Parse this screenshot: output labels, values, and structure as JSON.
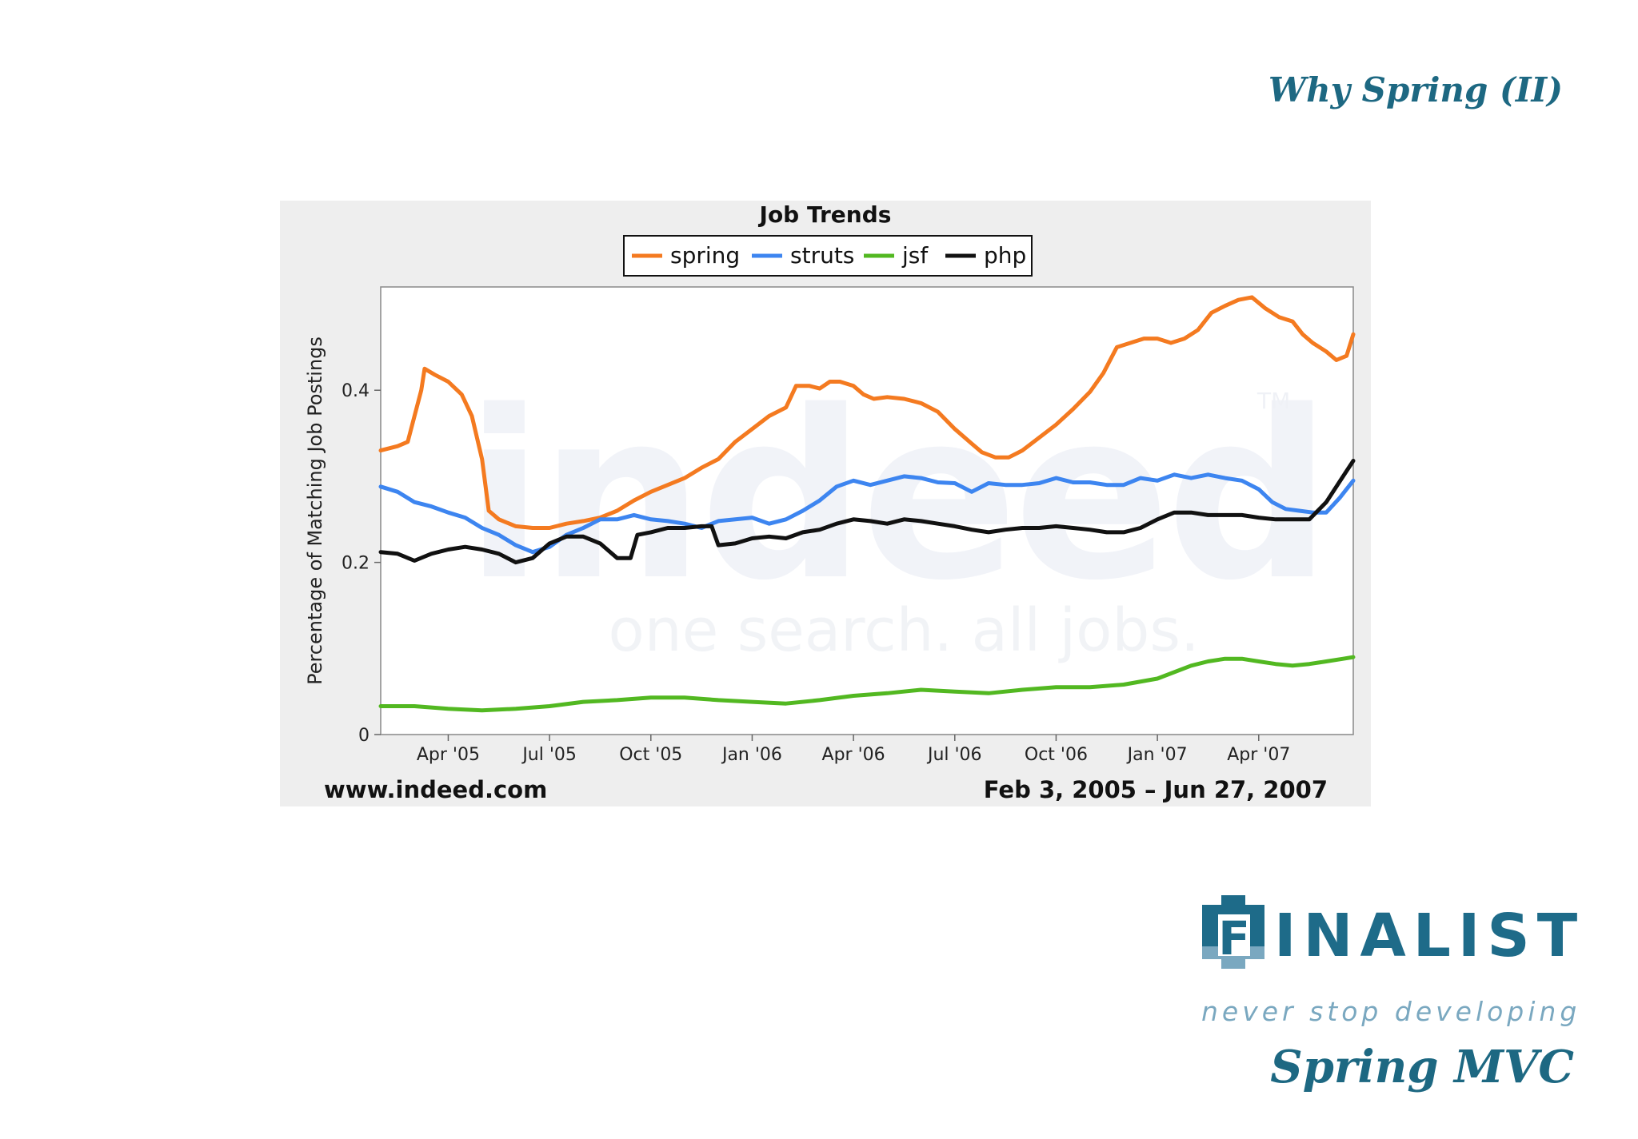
{
  "slide": {
    "title": "Why Spring (II)",
    "subtitle": "Spring MVC",
    "logo_text": "INALIST",
    "logo_initial": "F",
    "tagline": "never stop developing",
    "colors": {
      "accent": "#1d6882",
      "tagline": "#7aa8c0"
    }
  },
  "chart_data": {
    "type": "line",
    "title": "Job Trends",
    "xlabel": "",
    "ylabel": "Percentage of Matching Job Postings",
    "source": "www.indeed.com",
    "date_range": "Feb 3, 2005 – Jun 27, 2007",
    "watermark": {
      "brand": "indeed",
      "trademark": "TM",
      "slogan": "one search. all jobs."
    },
    "legend": "top-center",
    "x_range": [
      0,
      28.8
    ],
    "ylim": [
      0,
      0.52
    ],
    "x_ticks": [
      {
        "x": 2,
        "label": "Apr '05"
      },
      {
        "x": 5,
        "label": "Jul '05"
      },
      {
        "x": 8,
        "label": "Oct '05"
      },
      {
        "x": 11,
        "label": "Jan '06"
      },
      {
        "x": 14,
        "label": "Apr '06"
      },
      {
        "x": 17,
        "label": "Jul '06"
      },
      {
        "x": 20,
        "label": "Oct '06"
      },
      {
        "x": 23,
        "label": "Jan '07"
      },
      {
        "x": 26,
        "label": "Apr '07"
      }
    ],
    "y_ticks": [
      {
        "y": 0,
        "label": "0"
      },
      {
        "y": 0.2,
        "label": "0.2"
      },
      {
        "y": 0.4,
        "label": "0.4"
      }
    ],
    "series": [
      {
        "name": "spring",
        "color": "#f47a20",
        "points": [
          [
            0,
            0.33
          ],
          [
            0.5,
            0.335
          ],
          [
            0.8,
            0.34
          ],
          [
            1.2,
            0.4
          ],
          [
            1.3,
            0.425
          ],
          [
            1.6,
            0.418
          ],
          [
            2,
            0.41
          ],
          [
            2.4,
            0.395
          ],
          [
            2.7,
            0.37
          ],
          [
            3,
            0.32
          ],
          [
            3.2,
            0.26
          ],
          [
            3.5,
            0.25
          ],
          [
            4,
            0.242
          ],
          [
            4.5,
            0.24
          ],
          [
            5,
            0.24
          ],
          [
            5.5,
            0.245
          ],
          [
            6,
            0.248
          ],
          [
            6.5,
            0.252
          ],
          [
            7,
            0.26
          ],
          [
            7.5,
            0.272
          ],
          [
            8,
            0.282
          ],
          [
            8.5,
            0.29
          ],
          [
            9,
            0.298
          ],
          [
            9.5,
            0.31
          ],
          [
            10,
            0.32
          ],
          [
            10.5,
            0.34
          ],
          [
            11,
            0.355
          ],
          [
            11.5,
            0.37
          ],
          [
            12,
            0.38
          ],
          [
            12.3,
            0.405
          ],
          [
            12.7,
            0.405
          ],
          [
            13,
            0.402
          ],
          [
            13.3,
            0.41
          ],
          [
            13.6,
            0.41
          ],
          [
            14,
            0.405
          ],
          [
            14.3,
            0.395
          ],
          [
            14.6,
            0.39
          ],
          [
            15,
            0.392
          ],
          [
            15.5,
            0.39
          ],
          [
            16,
            0.385
          ],
          [
            16.5,
            0.375
          ],
          [
            17,
            0.355
          ],
          [
            17.5,
            0.338
          ],
          [
            17.8,
            0.328
          ],
          [
            18.2,
            0.322
          ],
          [
            18.6,
            0.322
          ],
          [
            19,
            0.33
          ],
          [
            19.5,
            0.345
          ],
          [
            20,
            0.36
          ],
          [
            20.5,
            0.378
          ],
          [
            21,
            0.398
          ],
          [
            21.4,
            0.42
          ],
          [
            21.8,
            0.45
          ],
          [
            22.2,
            0.455
          ],
          [
            22.6,
            0.46
          ],
          [
            23,
            0.46
          ],
          [
            23.4,
            0.455
          ],
          [
            23.8,
            0.46
          ],
          [
            24.2,
            0.47
          ],
          [
            24.6,
            0.49
          ],
          [
            25,
            0.498
          ],
          [
            25.4,
            0.505
          ],
          [
            25.8,
            0.508
          ],
          [
            26.2,
            0.495
          ],
          [
            26.6,
            0.485
          ],
          [
            27,
            0.48
          ],
          [
            27.3,
            0.465
          ],
          [
            27.6,
            0.455
          ],
          [
            28,
            0.445
          ],
          [
            28.3,
            0.435
          ],
          [
            28.6,
            0.44
          ],
          [
            28.8,
            0.465
          ]
        ]
      },
      {
        "name": "struts",
        "color": "#3d85f0",
        "points": [
          [
            0,
            0.288
          ],
          [
            0.5,
            0.282
          ],
          [
            1,
            0.27
          ],
          [
            1.5,
            0.265
          ],
          [
            2,
            0.258
          ],
          [
            2.5,
            0.252
          ],
          [
            3,
            0.24
          ],
          [
            3.5,
            0.232
          ],
          [
            4,
            0.22
          ],
          [
            4.5,
            0.212
          ],
          [
            5,
            0.218
          ],
          [
            5.5,
            0.232
          ],
          [
            6,
            0.24
          ],
          [
            6.5,
            0.25
          ],
          [
            7,
            0.25
          ],
          [
            7.5,
            0.255
          ],
          [
            8,
            0.25
          ],
          [
            8.5,
            0.248
          ],
          [
            9,
            0.245
          ],
          [
            9.5,
            0.24
          ],
          [
            10,
            0.248
          ],
          [
            10.5,
            0.25
          ],
          [
            11,
            0.252
          ],
          [
            11.5,
            0.245
          ],
          [
            12,
            0.25
          ],
          [
            12.5,
            0.26
          ],
          [
            13,
            0.272
          ],
          [
            13.5,
            0.288
          ],
          [
            14,
            0.295
          ],
          [
            14.5,
            0.29
          ],
          [
            15,
            0.295
          ],
          [
            15.5,
            0.3
          ],
          [
            16,
            0.298
          ],
          [
            16.5,
            0.293
          ],
          [
            17,
            0.292
          ],
          [
            17.5,
            0.282
          ],
          [
            18,
            0.292
          ],
          [
            18.5,
            0.29
          ],
          [
            19,
            0.29
          ],
          [
            19.5,
            0.292
          ],
          [
            20,
            0.298
          ],
          [
            20.5,
            0.293
          ],
          [
            21,
            0.293
          ],
          [
            21.5,
            0.29
          ],
          [
            22,
            0.29
          ],
          [
            22.5,
            0.298
          ],
          [
            23,
            0.295
          ],
          [
            23.5,
            0.302
          ],
          [
            24,
            0.298
          ],
          [
            24.5,
            0.302
          ],
          [
            25,
            0.298
          ],
          [
            25.5,
            0.295
          ],
          [
            26,
            0.285
          ],
          [
            26.4,
            0.27
          ],
          [
            26.8,
            0.262
          ],
          [
            27.2,
            0.26
          ],
          [
            27.6,
            0.258
          ],
          [
            28,
            0.258
          ],
          [
            28.4,
            0.275
          ],
          [
            28.8,
            0.295
          ]
        ]
      },
      {
        "name": "jsf",
        "color": "#52b821",
        "points": [
          [
            0,
            0.033
          ],
          [
            1,
            0.033
          ],
          [
            2,
            0.03
          ],
          [
            3,
            0.028
          ],
          [
            4,
            0.03
          ],
          [
            5,
            0.033
          ],
          [
            6,
            0.038
          ],
          [
            7,
            0.04
          ],
          [
            8,
            0.043
          ],
          [
            9,
            0.043
          ],
          [
            10,
            0.04
          ],
          [
            11,
            0.038
          ],
          [
            12,
            0.036
          ],
          [
            13,
            0.04
          ],
          [
            14,
            0.045
          ],
          [
            15,
            0.048
          ],
          [
            16,
            0.052
          ],
          [
            17,
            0.05
          ],
          [
            18,
            0.048
          ],
          [
            19,
            0.052
          ],
          [
            20,
            0.055
          ],
          [
            21,
            0.055
          ],
          [
            22,
            0.058
          ],
          [
            23,
            0.065
          ],
          [
            24,
            0.08
          ],
          [
            24.5,
            0.085
          ],
          [
            25,
            0.088
          ],
          [
            25.5,
            0.088
          ],
          [
            26,
            0.085
          ],
          [
            26.5,
            0.082
          ],
          [
            27,
            0.08
          ],
          [
            27.5,
            0.082
          ],
          [
            28,
            0.085
          ],
          [
            28.5,
            0.088
          ],
          [
            28.8,
            0.09
          ]
        ]
      },
      {
        "name": "php",
        "color": "#111111",
        "points": [
          [
            0,
            0.212
          ],
          [
            0.5,
            0.21
          ],
          [
            1,
            0.202
          ],
          [
            1.5,
            0.21
          ],
          [
            2,
            0.215
          ],
          [
            2.5,
            0.218
          ],
          [
            3,
            0.215
          ],
          [
            3.5,
            0.21
          ],
          [
            4,
            0.2
          ],
          [
            4.5,
            0.205
          ],
          [
            5,
            0.222
          ],
          [
            5.5,
            0.23
          ],
          [
            6,
            0.23
          ],
          [
            6.5,
            0.222
          ],
          [
            7,
            0.205
          ],
          [
            7.4,
            0.205
          ],
          [
            7.6,
            0.232
          ],
          [
            8,
            0.235
          ],
          [
            8.5,
            0.24
          ],
          [
            9,
            0.24
          ],
          [
            9.5,
            0.242
          ],
          [
            9.8,
            0.242
          ],
          [
            10,
            0.22
          ],
          [
            10.5,
            0.222
          ],
          [
            11,
            0.228
          ],
          [
            11.5,
            0.23
          ],
          [
            12,
            0.228
          ],
          [
            12.5,
            0.235
          ],
          [
            13,
            0.238
          ],
          [
            13.5,
            0.245
          ],
          [
            14,
            0.25
          ],
          [
            14.5,
            0.248
          ],
          [
            15,
            0.245
          ],
          [
            15.5,
            0.25
          ],
          [
            16,
            0.248
          ],
          [
            16.5,
            0.245
          ],
          [
            17,
            0.242
          ],
          [
            17.5,
            0.238
          ],
          [
            18,
            0.235
          ],
          [
            18.5,
            0.238
          ],
          [
            19,
            0.24
          ],
          [
            19.5,
            0.24
          ],
          [
            20,
            0.242
          ],
          [
            20.5,
            0.24
          ],
          [
            21,
            0.238
          ],
          [
            21.5,
            0.235
          ],
          [
            22,
            0.235
          ],
          [
            22.5,
            0.24
          ],
          [
            23,
            0.25
          ],
          [
            23.5,
            0.258
          ],
          [
            24,
            0.258
          ],
          [
            24.5,
            0.255
          ],
          [
            25,
            0.255
          ],
          [
            25.5,
            0.255
          ],
          [
            26,
            0.252
          ],
          [
            26.5,
            0.25
          ],
          [
            27,
            0.25
          ],
          [
            27.5,
            0.25
          ],
          [
            28,
            0.27
          ],
          [
            28.5,
            0.3
          ],
          [
            28.8,
            0.318
          ]
        ]
      }
    ]
  }
}
